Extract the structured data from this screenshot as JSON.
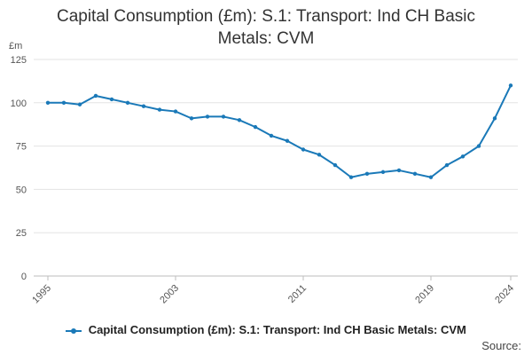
{
  "chart_data": {
    "type": "line",
    "title": "Capital Consumption (£m): S.1: Transport: Ind CH Basic Metals: CVM",
    "ylabel": "£m",
    "xlabel": "",
    "ylim": [
      0,
      125
    ],
    "yticks": [
      0,
      25,
      50,
      75,
      100,
      125
    ],
    "xticks": [
      "1995",
      "2003",
      "2011",
      "2019",
      "2024"
    ],
    "grid": true,
    "legend_position": "bottom",
    "series": [
      {
        "name": "Capital Consumption (£m): S.1: Transport: Ind CH Basic Metals: CVM",
        "color": "#1a79b8",
        "x": [
          1995,
          1996,
          1997,
          1998,
          1999,
          2000,
          2001,
          2002,
          2003,
          2004,
          2005,
          2006,
          2007,
          2008,
          2009,
          2010,
          2011,
          2012,
          2013,
          2014,
          2015,
          2016,
          2017,
          2018,
          2019,
          2020,
          2021,
          2022,
          2023,
          2024
        ],
        "values": [
          100,
          100,
          99,
          104,
          102,
          100,
          98,
          96,
          95,
          91,
          92,
          92,
          90,
          86,
          81,
          78,
          73,
          70,
          64,
          57,
          59,
          60,
          61,
          59,
          57,
          64,
          69,
          75,
          91,
          110
        ]
      }
    ]
  },
  "footer": {
    "source_label": "Source:"
  }
}
